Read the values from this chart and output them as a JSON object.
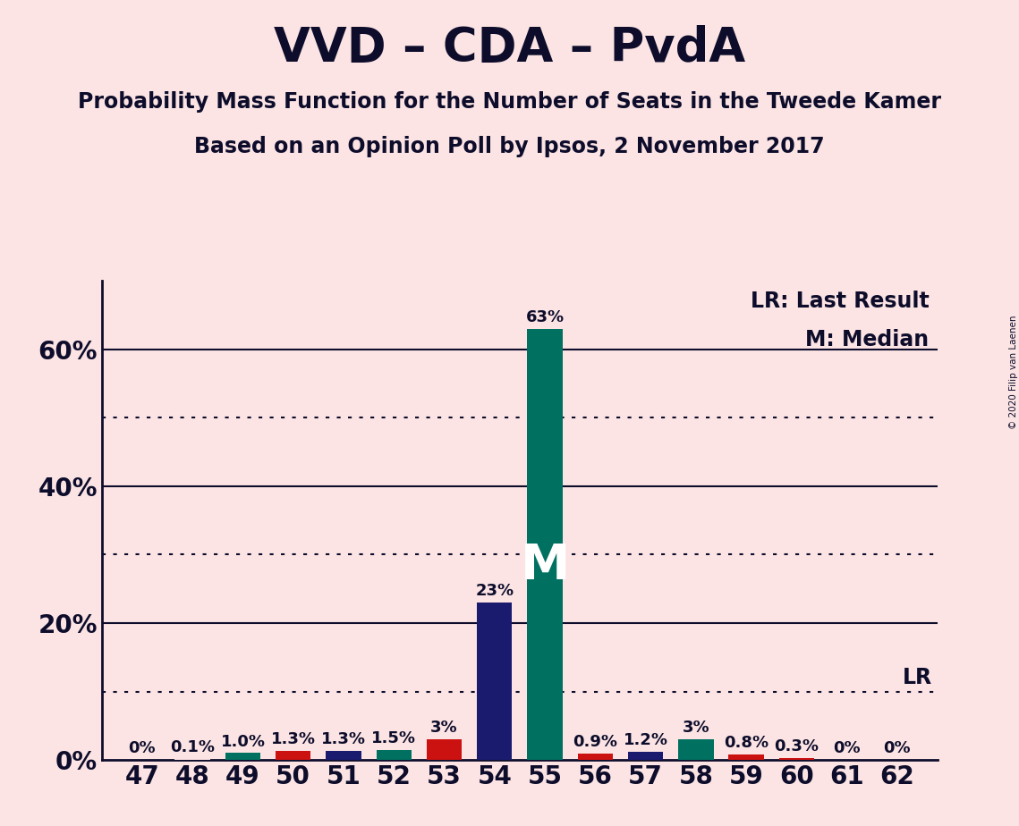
{
  "title": "VVD – CDA – PvdA",
  "subtitle1": "Probability Mass Function for the Number of Seats in the Tweede Kamer",
  "subtitle2": "Based on an Opinion Poll by Ipsos, 2 November 2017",
  "copyright": "© 2020 Filip van Laenen",
  "seats": [
    47,
    48,
    49,
    50,
    51,
    52,
    53,
    54,
    55,
    56,
    57,
    58,
    59,
    60,
    61,
    62
  ],
  "values": [
    0.0,
    0.1,
    1.0,
    1.3,
    1.3,
    1.5,
    3.0,
    23.0,
    63.0,
    0.9,
    1.2,
    3.0,
    0.8,
    0.3,
    0.0,
    0.0
  ],
  "labels": [
    "0%",
    "0.1%",
    "1.0%",
    "1.3%",
    "1.3%",
    "1.5%",
    "3%",
    "23%",
    "63%",
    "0.9%",
    "1.2%",
    "3%",
    "0.8%",
    "0.3%",
    "0%",
    "0%"
  ],
  "colors": [
    "#fce4e4",
    "#fce4e4",
    "#007060",
    "#cc1111",
    "#1a1a6e",
    "#007060",
    "#cc1111",
    "#1a1a6e",
    "#007060",
    "#cc1111",
    "#1a1a6e",
    "#007060",
    "#cc1111",
    "#cc1111",
    "#fce4e4",
    "#fce4e4"
  ],
  "median_seat_idx": 8,
  "background_color": "#fce4e4",
  "ytick_labels": [
    "0%",
    "20%",
    "40%",
    "60%"
  ],
  "ytick_values": [
    0,
    20,
    40,
    60
  ],
  "solid_gridlines": [
    20,
    40,
    60
  ],
  "dotted_gridlines": [
    10,
    30,
    50
  ],
  "lr_line_y": 10,
  "ylim": [
    0,
    70
  ],
  "xlim": [
    46.2,
    62.8
  ],
  "lr_label": "LR",
  "legend_lr": "LR: Last Result",
  "legend_m": "M: Median",
  "median_label": "M"
}
